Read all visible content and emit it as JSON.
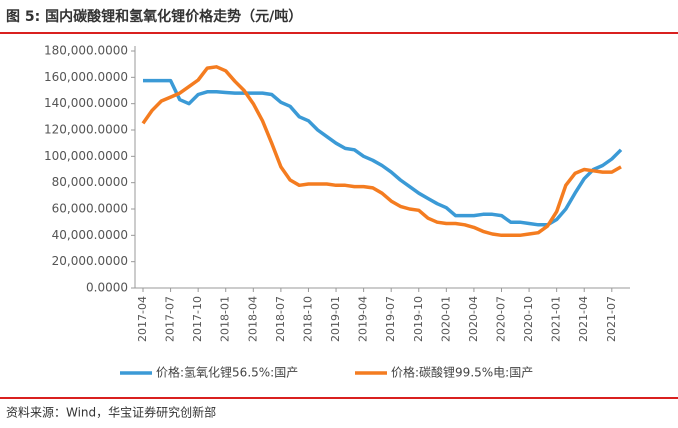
{
  "chart_data": {
    "type": "line",
    "title": "图 5: 国内碳酸锂和氢氧化锂价格走势（元/吨）",
    "source": "资料来源：Wind，华宝证券研究创新部",
    "x": [
      "2017-04",
      "2017-05",
      "2017-06",
      "2017-07",
      "2017-08",
      "2017-09",
      "2017-10",
      "2017-11",
      "2017-12",
      "2018-01",
      "2018-02",
      "2018-03",
      "2018-04",
      "2018-05",
      "2018-06",
      "2018-07",
      "2018-08",
      "2018-09",
      "2018-10",
      "2018-11",
      "2018-12",
      "2019-01",
      "2019-02",
      "2019-03",
      "2019-04",
      "2019-05",
      "2019-06",
      "2019-07",
      "2019-08",
      "2019-09",
      "2019-10",
      "2019-11",
      "2019-12",
      "2020-01",
      "2020-02",
      "2020-03",
      "2020-04",
      "2020-05",
      "2020-06",
      "2020-07",
      "2020-08",
      "2020-09",
      "2020-10",
      "2020-11",
      "2020-12",
      "2021-01",
      "2021-02",
      "2021-03",
      "2021-04",
      "2021-05",
      "2021-06",
      "2021-07",
      "2021-08"
    ],
    "series": [
      {
        "name": "价格:氢氧化锂56.5%:国产",
        "color": "#3b9ad6",
        "values": [
          157500,
          157500,
          157500,
          157500,
          143000,
          140000,
          147000,
          149000,
          149000,
          148500,
          148000,
          148000,
          148000,
          148000,
          147000,
          141000,
          138000,
          130000,
          127000,
          120000,
          115000,
          110000,
          106000,
          105000,
          100000,
          97000,
          93000,
          88000,
          82000,
          77000,
          72000,
          68000,
          64000,
          61000,
          55000,
          55000,
          55000,
          56000,
          56000,
          55000,
          50000,
          50000,
          49000,
          48000,
          48000,
          52000,
          60000,
          72000,
          83000,
          90000,
          93000,
          98000,
          105000
        ]
      },
      {
        "name": "价格:碳酸锂99.5%电:国产",
        "color": "#f47c20",
        "values": [
          125000,
          135000,
          142000,
          145000,
          148000,
          153000,
          158000,
          167000,
          168000,
          165000,
          157000,
          150000,
          140000,
          127000,
          110000,
          92000,
          82000,
          78000,
          79000,
          79000,
          79000,
          78000,
          78000,
          77000,
          77000,
          76000,
          72000,
          66000,
          62000,
          60000,
          59000,
          53000,
          50000,
          49000,
          49000,
          48000,
          46000,
          43000,
          41000,
          40000,
          40000,
          40000,
          41000,
          42000,
          47000,
          58000,
          78000,
          87000,
          90000,
          89000,
          88000,
          88000,
          92000
        ]
      }
    ],
    "xlim": [
      "2017-04",
      "2021-08"
    ],
    "xticks": [
      "2017-04",
      "2017-07",
      "2017-10",
      "2018-01",
      "2018-04",
      "2018-07",
      "2018-10",
      "2019-01",
      "2019-04",
      "2019-07",
      "2019-10",
      "2020-01",
      "2020-04",
      "2020-07",
      "2020-10",
      "2021-01",
      "2021-04",
      "2021-07"
    ],
    "ylim": [
      0,
      180000
    ],
    "yticks": [
      {
        "value": 0,
        "label": "0.0000"
      },
      {
        "value": 20000,
        "label": "20,000.0000"
      },
      {
        "value": 40000,
        "label": "40,000.0000"
      },
      {
        "value": 60000,
        "label": "60,000.0000"
      },
      {
        "value": 80000,
        "label": "80,000.0000"
      },
      {
        "value": 100000,
        "label": "100,000.0000"
      },
      {
        "value": 120000,
        "label": "120,000.0000"
      },
      {
        "value": 140000,
        "label": "140,000.0000"
      },
      {
        "value": 160000,
        "label": "160,000.0000"
      },
      {
        "value": 180000,
        "label": "180,000.0000"
      }
    ],
    "legend": "bottom"
  }
}
